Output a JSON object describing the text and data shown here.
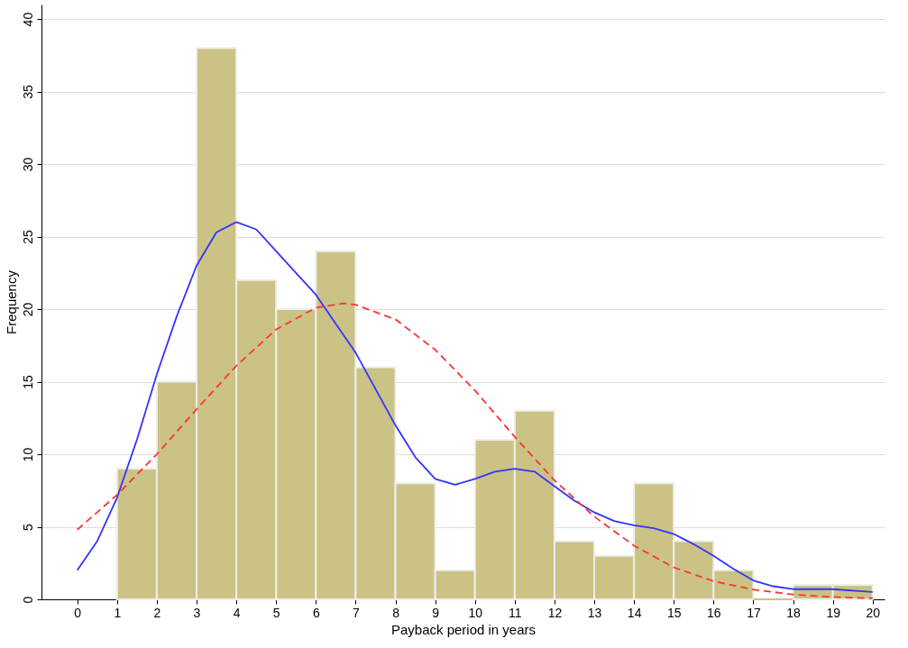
{
  "chart_data": {
    "type": "histogram",
    "xlabel": "Payback period in years",
    "ylabel": "Frequency",
    "bins": [
      1,
      2,
      3,
      4,
      5,
      6,
      7,
      8,
      9,
      10,
      11,
      12,
      13,
      14,
      15,
      16,
      17,
      18,
      19,
      20
    ],
    "values": [
      9,
      15,
      38,
      22,
      20,
      24,
      16,
      8,
      2,
      11,
      13,
      4,
      3,
      8,
      4,
      2,
      0,
      1,
      1
    ],
    "color": "#cbc385",
    "series": [
      {
        "type": "line",
        "color": "#3333ff",
        "line_style": "solid",
        "x": [
          0,
          0.5,
          1,
          1.5,
          2,
          2.5,
          3,
          3.5,
          4,
          4.5,
          5,
          5.5,
          6,
          6.5,
          7,
          7.5,
          8,
          8.5,
          9,
          9.5,
          10,
          10.5,
          11,
          11.5,
          12,
          12.5,
          13,
          13.5,
          14,
          14.5,
          15,
          15.5,
          16,
          16.5,
          17,
          17.5,
          18,
          19,
          20
        ],
        "values": [
          2,
          4,
          7,
          11,
          15.5,
          19.5,
          23,
          25.3,
          26,
          25.5,
          24,
          22.5,
          21,
          19,
          17,
          14.5,
          12,
          9.8,
          8.3,
          7.9,
          8.3,
          8.8,
          9,
          8.8,
          7.8,
          6.8,
          6,
          5.4,
          5.1,
          4.9,
          4.5,
          3.8,
          3,
          2.1,
          1.3,
          0.9,
          0.7,
          0.7,
          0.5
        ]
      },
      {
        "type": "line",
        "color": "#ff3333",
        "line_style": "dashed",
        "x": [
          0,
          1,
          2,
          3,
          4,
          5,
          6,
          6.7,
          7,
          8,
          9,
          10,
          11,
          12,
          13,
          14,
          15,
          16,
          17,
          18,
          19,
          20
        ],
        "values": [
          4.8,
          7.2,
          10,
          13.1,
          16.1,
          18.6,
          20.1,
          20.4,
          20.3,
          19.3,
          17.2,
          14.4,
          11.2,
          8.2,
          5.7,
          3.7,
          2.2,
          1.25,
          0.67,
          0.33,
          0.16,
          0.07
        ]
      }
    ],
    "xlim": [
      -0.9,
      20.3
    ],
    "xticks": [
      0,
      1,
      2,
      3,
      4,
      5,
      6,
      7,
      8,
      9,
      10,
      11,
      12,
      13,
      14,
      15,
      16,
      17,
      18,
      19,
      20
    ],
    "ylim": [
      0,
      41
    ],
    "yticks": [
      0,
      5,
      10,
      15,
      20,
      25,
      30,
      35,
      40
    ],
    "grid": "y"
  }
}
